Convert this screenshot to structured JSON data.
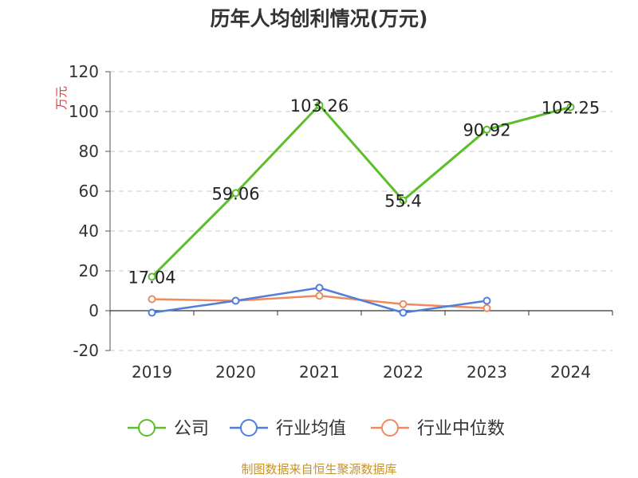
{
  "title": "历年人均创利情况(万元)",
  "source": "制图数据来自恒生聚源数据库",
  "chart_data": {
    "type": "line",
    "title": "历年人均创利情况(万元)",
    "ylabel": "万元",
    "xlabel": "",
    "categories": [
      "2019",
      "2020",
      "2021",
      "2022",
      "2023",
      "2024"
    ],
    "ylim": [
      -20,
      120
    ],
    "yticks": [
      -20,
      0,
      20,
      40,
      60,
      80,
      100,
      120
    ],
    "grid": true,
    "legend_position": "bottom",
    "series": [
      {
        "name": "公司",
        "color": "#5cbf2a",
        "values": [
          17.04,
          59.06,
          103.26,
          55.4,
          90.92,
          102.25
        ],
        "labels": [
          "17.04",
          "59.06",
          "103.26",
          "55.4",
          "90.92",
          "102.25"
        ]
      },
      {
        "name": "行业均值",
        "color": "#4f7fdb",
        "values": [
          -1.0,
          5.0,
          11.5,
          -1.0,
          5.0,
          null
        ]
      },
      {
        "name": "行业中位数",
        "color": "#f08a5d",
        "values": [
          5.8,
          5.0,
          7.5,
          3.3,
          1.3,
          null
        ]
      }
    ]
  }
}
